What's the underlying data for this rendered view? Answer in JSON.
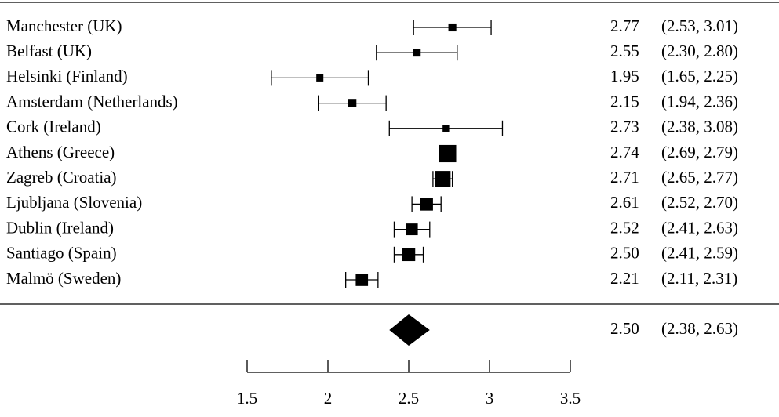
{
  "chart_data": {
    "type": "forest",
    "color": "#000000",
    "categories": [
      "Manchester (UK)",
      "Belfast (UK)",
      "Helsinki (Finland)",
      "Amsterdam (Netherlands)",
      "Cork (Ireland)",
      "Athens (Greece)",
      "Zagreb (Croatia)",
      "Ljubljana (Slovenia)",
      "Dublin (Ireland)",
      "Santiago (Spain)",
      "Malmö (Sweden)"
    ],
    "values": [
      2.77,
      2.55,
      1.95,
      2.15,
      2.73,
      2.74,
      2.71,
      2.61,
      2.52,
      2.5,
      2.21
    ],
    "value_labels": [
      "2.77",
      "2.55",
      "1.95",
      "2.15",
      "2.73",
      "2.74",
      "2.71",
      "2.61",
      "2.52",
      "2.50",
      "2.21"
    ],
    "lower": [
      2.53,
      2.3,
      1.65,
      1.94,
      2.38,
      2.69,
      2.65,
      2.52,
      2.41,
      2.41,
      2.11
    ],
    "upper": [
      3.01,
      2.8,
      2.25,
      2.36,
      3.08,
      2.79,
      2.77,
      2.7,
      2.63,
      2.59,
      2.31
    ],
    "ci_labels": [
      "(2.53, 3.01)",
      "(2.30, 2.80)",
      "(1.65, 2.25)",
      "(1.94, 2.36)",
      "(2.38, 3.08)",
      "(2.69, 2.79)",
      "(2.65, 2.77)",
      "(2.52, 2.70)",
      "(2.41, 2.63)",
      "(2.41, 2.59)",
      "(2.11, 2.31)"
    ],
    "overall": {
      "value": 2.5,
      "value_label": "2.50",
      "lower": 2.38,
      "upper": 2.63,
      "ci_label": "(2.38, 2.63)"
    },
    "xlim": [
      1.5,
      3.5
    ],
    "xticks": [
      1.5,
      2,
      2.5,
      3,
      3.5
    ]
  }
}
